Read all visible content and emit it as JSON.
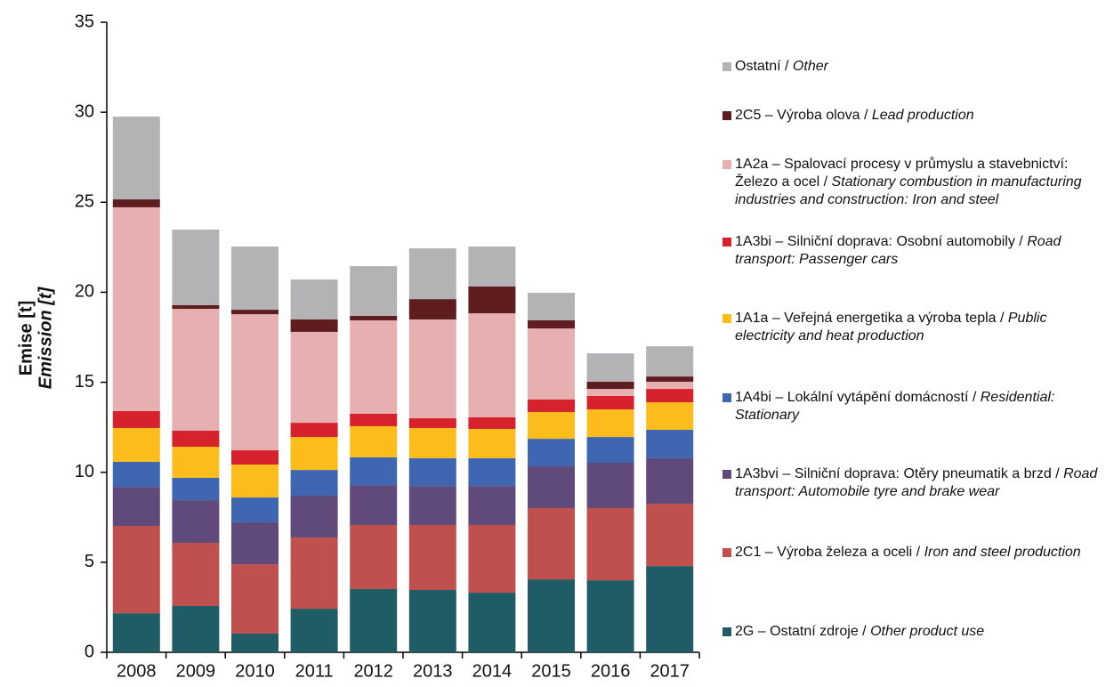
{
  "chart_data": {
    "type": "stacked-bar",
    "ylabel": [
      "Emise [t]",
      "Emission [t]"
    ],
    "categories": [
      "2008",
      "2009",
      "2010",
      "2011",
      "2012",
      "2013",
      "2014",
      "2015",
      "2016",
      "2017"
    ],
    "ylim": [
      0,
      35
    ],
    "yticks": [
      0,
      5,
      10,
      15,
      20,
      25,
      30,
      35
    ],
    "series": [
      {
        "name": "2G – Ostatní zdroje / Other product use",
        "color": "#1f5c66",
        "values": [
          2.17,
          2.57,
          1.04,
          2.42,
          3.51,
          3.46,
          3.31,
          4.05,
          4.0,
          4.79
        ]
      },
      {
        "name": "2C1 – Výroba železa a oceli / Iron and steel production",
        "color": "#c0504d",
        "values": [
          4.85,
          3.51,
          3.85,
          3.96,
          3.56,
          3.61,
          3.76,
          3.96,
          4.01,
          3.46
        ]
      },
      {
        "name": "1A3bvi – Silniční doprava: Otěry pneumatik a brzd / Road transport: Automobile tyre and brake wear",
        "color": "#604a7b",
        "values": [
          2.17,
          2.37,
          2.33,
          2.32,
          2.22,
          2.17,
          2.17,
          2.32,
          2.52,
          2.53
        ]
      },
      {
        "name": "1A4bi – Lokální vytápění domácností / Residential: Stationary",
        "color": "#3f67b1",
        "values": [
          1.39,
          1.24,
          1.38,
          1.43,
          1.54,
          1.54,
          1.54,
          1.53,
          1.43,
          1.58
        ]
      },
      {
        "name": "1A1a – Veřejná energetika a výroba tepla / Public electricity and heat production",
        "color": "#fbbc1c",
        "values": [
          1.88,
          1.73,
          1.83,
          1.83,
          1.73,
          1.68,
          1.63,
          1.49,
          1.53,
          1.53
        ]
      },
      {
        "name": "1A3bi – Silniční doprava: Osobní automobily / Road transport: Passenger cars",
        "color": "#d7212c",
        "values": [
          0.94,
          0.89,
          0.79,
          0.79,
          0.69,
          0.54,
          0.64,
          0.69,
          0.75,
          0.74
        ]
      },
      {
        "name": "1A2a – Spalovací procesy v průmyslu a stavebnictví: Železo a ocel / Stationary combustion in manufacturing industries and construction: Iron and steel",
        "color": "#e6b0b0",
        "values": [
          11.32,
          6.77,
          7.56,
          5.05,
          5.19,
          5.49,
          5.78,
          3.95,
          0.39,
          0.4
        ]
      },
      {
        "name": "2C5 – Výroba olova / Lead production",
        "color": "#5f1d20",
        "values": [
          0.44,
          0.2,
          0.25,
          0.69,
          0.25,
          1.13,
          1.49,
          0.45,
          0.4,
          0.29
        ]
      },
      {
        "name": "Ostatní / Other",
        "color": "#b3b3b5",
        "values": [
          4.6,
          4.2,
          3.51,
          2.22,
          2.76,
          2.82,
          2.22,
          1.53,
          1.58,
          1.68
        ]
      }
    ]
  }
}
